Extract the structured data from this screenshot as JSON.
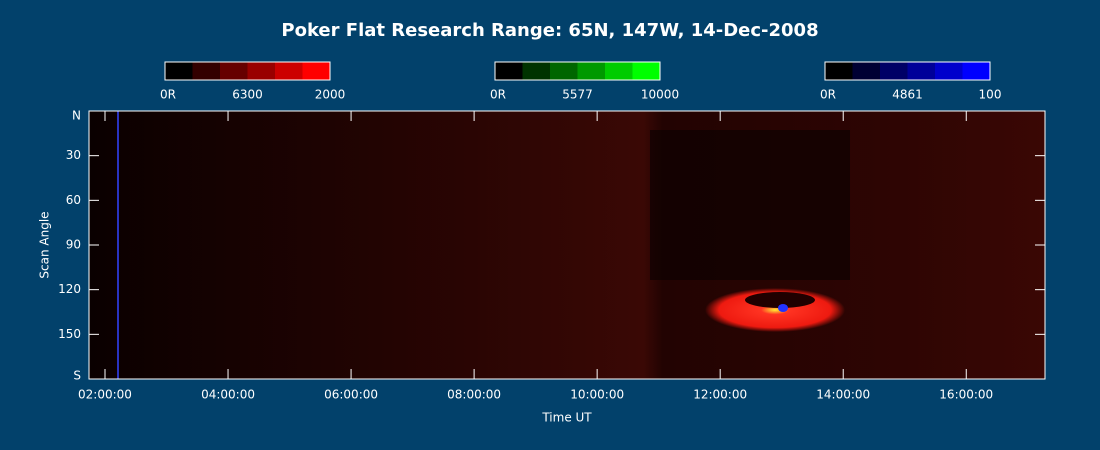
{
  "chart_data": {
    "type": "keogram",
    "title": "Poker Flat Research Range: 65N, 147W, 14-Dec-2008",
    "x_label": "Time UT",
    "y_label": "Scan Angle",
    "xlim": [
      1.74,
      17.28
    ],
    "xticks": [
      {
        "value": 2,
        "label": "02:00:00"
      },
      {
        "value": 4,
        "label": "04:00:00"
      },
      {
        "value": 6,
        "label": "06:00:00"
      },
      {
        "value": 8,
        "label": "08:00:00"
      },
      {
        "value": 10,
        "label": "10:00:00"
      },
      {
        "value": 12,
        "label": "12:00:00"
      },
      {
        "value": 14,
        "label": "14:00:00"
      },
      {
        "value": 16,
        "label": "16:00:00"
      }
    ],
    "ylim": [
      0,
      180
    ],
    "yticks": [
      {
        "value": 0,
        "label": "N"
      },
      30,
      60,
      90,
      120,
      150,
      {
        "value": 180,
        "label": "S"
      }
    ],
    "colorbars": [
      {
        "name": "6300",
        "color": "#ff0000",
        "min_label": "0R",
        "max": 2000
      },
      {
        "name": "5577",
        "color": "#00ff00",
        "min_label": "0R",
        "max": 10000
      },
      {
        "name": "4861",
        "color": "#0000ff",
        "min_label": "0R",
        "max": 100
      }
    ]
  }
}
